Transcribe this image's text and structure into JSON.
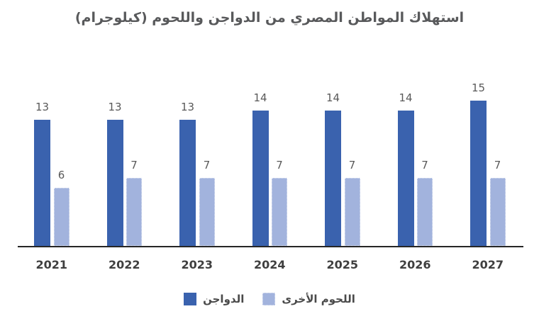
{
  "title": "استهلاك المواطن المصري من الدواجن واللحوم (كيلوجرام)",
  "chart_data": {
    "type": "bar",
    "categories": [
      "2021",
      "2022",
      "2023",
      "2024",
      "2025",
      "2026",
      "2027"
    ],
    "series": [
      {
        "name": "الدواجن",
        "color": "#3a62ae",
        "values": [
          13,
          13,
          13,
          14,
          14,
          14,
          15
        ]
      },
      {
        "name": "اللحوم الأخرى",
        "color": "#a2b3dd",
        "values": [
          6,
          7,
          7,
          7,
          7,
          7,
          7
        ]
      }
    ],
    "title": "استهلاك المواطن المصري من الدواجن واللحوم (كيلوجرام)",
    "xlabel": "",
    "ylabel": "",
    "ylim": [
      0,
      15
    ],
    "grid": false,
    "value_labels": true,
    "legend_position": "bottom",
    "axis_color": "#262626",
    "value_label_color": "#595959",
    "category_label_color": "#3f3f3f"
  },
  "legend": {
    "items": [
      {
        "label": "الدواجن",
        "color": "#3a62ae"
      },
      {
        "label": "اللحوم الأخرى",
        "color": "#a2b3dd"
      }
    ]
  }
}
